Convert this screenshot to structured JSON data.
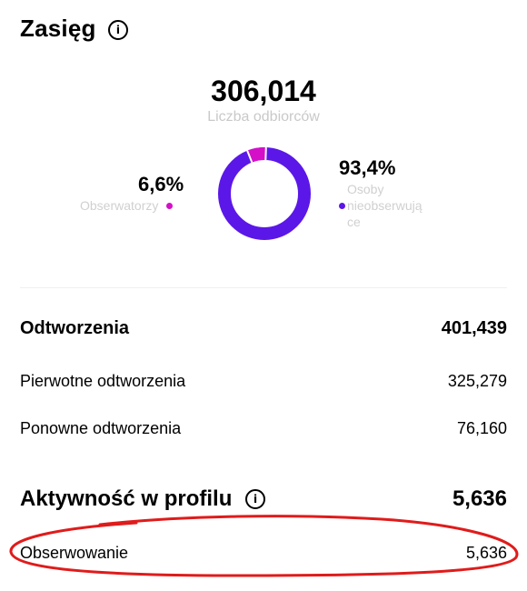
{
  "reach": {
    "title": "Zasięg",
    "info_icon": "info-icon",
    "total_value": "306,014",
    "total_label": "Liczba odbiorców",
    "followers": {
      "percent": "6,6%",
      "label": "Obserwatorzy",
      "share": 0.066,
      "color": "#d50fc8"
    },
    "non_followers": {
      "percent": "93,4%",
      "label_lines": [
        "Osoby",
        "nieobserwują",
        "ce"
      ],
      "share": 0.934,
      "color": "#5b17e8"
    }
  },
  "plays": {
    "label": "Odtworzenia",
    "value": "401,439",
    "rows": [
      {
        "label": "Pierwotne odtworzenia",
        "value": "325,279"
      },
      {
        "label": "Ponowne odtworzenia",
        "value": "76,160"
      }
    ]
  },
  "profile_activity": {
    "label": "Aktywność w profilu",
    "info_icon": "info-icon",
    "value": "5,636",
    "rows": [
      {
        "label": "Obserwowanie",
        "value": "5,636"
      }
    ]
  },
  "annotation": {
    "color": "#e01b1b"
  }
}
